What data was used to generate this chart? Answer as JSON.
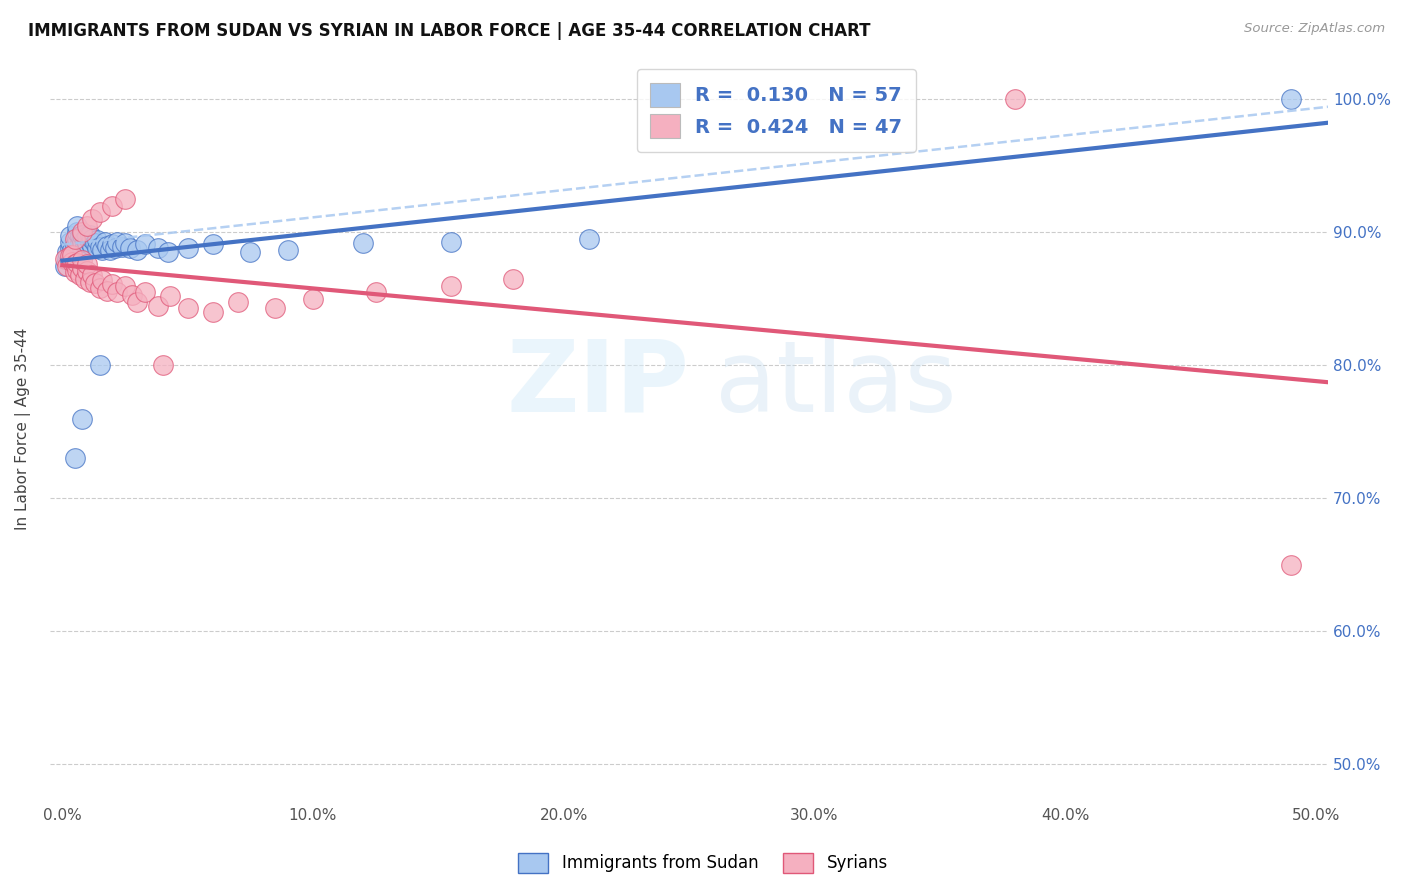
{
  "title": "IMMIGRANTS FROM SUDAN VS SYRIAN IN LABOR FORCE | AGE 35-44 CORRELATION CHART",
  "source": "Source: ZipAtlas.com",
  "ylabel": "In Labor Force | Age 35-44",
  "color_blue": "#a8c8f0",
  "color_pink": "#f5b0c0",
  "line_blue": "#4472c4",
  "line_pink": "#e05878",
  "r1": "0.130",
  "n1": "57",
  "r2": "0.424",
  "n2": "47",
  "sudan_x": [
    0.001,
    0.002,
    0.002,
    0.003,
    0.003,
    0.003,
    0.004,
    0.004,
    0.005,
    0.005,
    0.005,
    0.006,
    0.006,
    0.006,
    0.007,
    0.007,
    0.008,
    0.008,
    0.008,
    0.009,
    0.009,
    0.01,
    0.01,
    0.01,
    0.011,
    0.011,
    0.012,
    0.012,
    0.013,
    0.014,
    0.014,
    0.015,
    0.016,
    0.017,
    0.018,
    0.019,
    0.02,
    0.021,
    0.022,
    0.024,
    0.025,
    0.027,
    0.03,
    0.033,
    0.038,
    0.042,
    0.05,
    0.06,
    0.075,
    0.09,
    0.12,
    0.155,
    0.21,
    0.005,
    0.008,
    0.015,
    0.49
  ],
  "sudan_y": [
    0.875,
    0.88,
    0.885,
    0.888,
    0.893,
    0.897,
    0.882,
    0.887,
    0.878,
    0.883,
    0.89,
    0.895,
    0.9,
    0.905,
    0.892,
    0.897,
    0.888,
    0.893,
    0.898,
    0.89,
    0.895,
    0.887,
    0.892,
    0.897,
    0.893,
    0.898,
    0.89,
    0.895,
    0.892,
    0.888,
    0.894,
    0.889,
    0.887,
    0.893,
    0.89,
    0.887,
    0.891,
    0.888,
    0.893,
    0.889,
    0.892,
    0.888,
    0.887,
    0.891,
    0.888,
    0.885,
    0.888,
    0.891,
    0.885,
    0.887,
    0.892,
    0.893,
    0.895,
    0.73,
    0.76,
    0.8,
    1.0
  ],
  "syrian_x": [
    0.001,
    0.002,
    0.003,
    0.004,
    0.004,
    0.005,
    0.005,
    0.006,
    0.006,
    0.007,
    0.008,
    0.008,
    0.009,
    0.01,
    0.01,
    0.011,
    0.012,
    0.013,
    0.015,
    0.016,
    0.018,
    0.02,
    0.022,
    0.025,
    0.028,
    0.03,
    0.033,
    0.038,
    0.043,
    0.05,
    0.06,
    0.07,
    0.085,
    0.1,
    0.125,
    0.155,
    0.18,
    0.005,
    0.008,
    0.01,
    0.012,
    0.015,
    0.02,
    0.025,
    0.04,
    0.38,
    0.49
  ],
  "syrian_y": [
    0.88,
    0.875,
    0.882,
    0.878,
    0.883,
    0.87,
    0.876,
    0.872,
    0.877,
    0.868,
    0.873,
    0.879,
    0.865,
    0.871,
    0.876,
    0.863,
    0.868,
    0.862,
    0.858,
    0.864,
    0.856,
    0.861,
    0.855,
    0.86,
    0.853,
    0.848,
    0.855,
    0.845,
    0.852,
    0.843,
    0.84,
    0.848,
    0.843,
    0.85,
    0.855,
    0.86,
    0.865,
    0.895,
    0.9,
    0.905,
    0.91,
    0.915,
    0.92,
    0.925,
    0.8,
    1.0,
    0.65
  ],
  "xlim": [
    -0.005,
    0.505
  ],
  "ylim": [
    0.475,
    1.03
  ],
  "ytick_positions": [
    0.5,
    0.6,
    0.7,
    0.8,
    0.9,
    1.0
  ],
  "ytick_labels": [
    "50.0%",
    "60.0%",
    "70.0%",
    "80.0%",
    "90.0%",
    "100.0%"
  ],
  "xtick_positions": [
    0.0,
    0.1,
    0.2,
    0.3,
    0.4,
    0.5
  ],
  "xtick_labels": [
    "0.0%",
    "10.0%",
    "20.0%",
    "30.0%",
    "40.0%",
    "50.0%"
  ]
}
